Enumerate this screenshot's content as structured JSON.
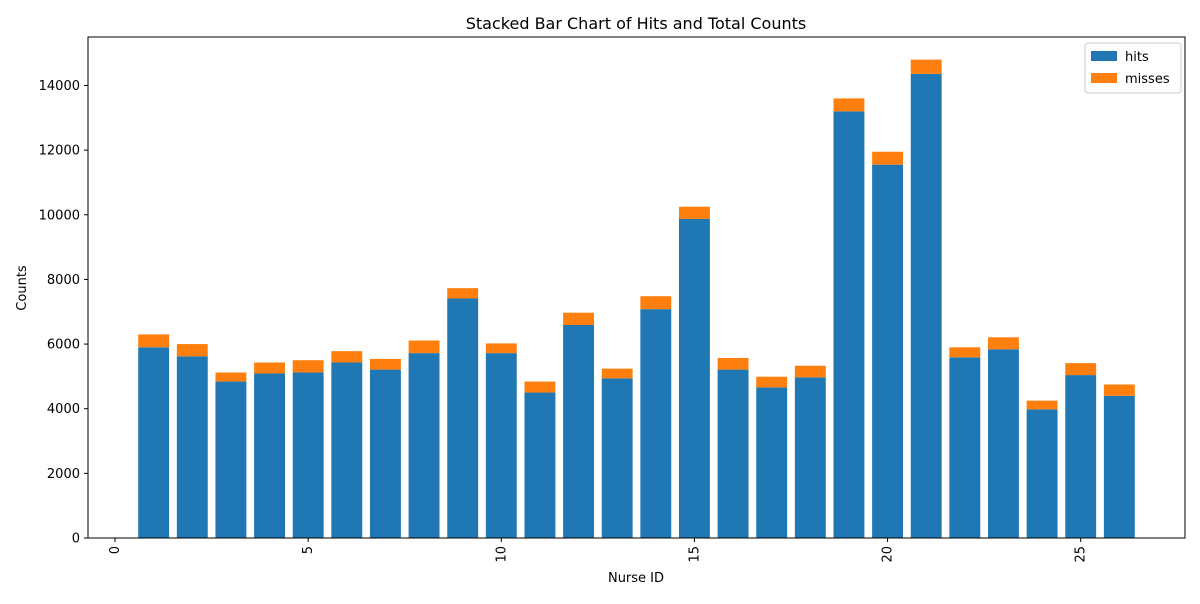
{
  "chart_data": {
    "type": "bar",
    "stacked": true,
    "title": "Stacked Bar Chart of Hits and Total Counts",
    "xlabel": "Nurse ID",
    "ylabel": "Counts",
    "xlim": [
      -0.7,
      27.7
    ],
    "ylim": [
      0,
      15500
    ],
    "x_ticks": [
      0,
      5,
      10,
      15,
      20,
      25
    ],
    "x_tick_labels": [
      "0",
      "5",
      "10",
      "15",
      "20",
      "25"
    ],
    "y_ticks": [
      0,
      2000,
      4000,
      6000,
      8000,
      10000,
      12000,
      14000
    ],
    "y_tick_labels": [
      "0",
      "2000",
      "4000",
      "6000",
      "8000",
      "10000",
      "12000",
      "14000"
    ],
    "grid": false,
    "legend_position": "top-right",
    "x": [
      1,
      2,
      3,
      4,
      5,
      6,
      7,
      8,
      9,
      10,
      11,
      12,
      13,
      14,
      15,
      16,
      17,
      18,
      19,
      20,
      21,
      22,
      23,
      24,
      25,
      26
    ],
    "series": [
      {
        "name": "hits",
        "color": "#1f77b4",
        "values": [
          5900,
          5620,
          4840,
          5090,
          5120,
          5430,
          5210,
          5720,
          7410,
          5720,
          4500,
          6590,
          4940,
          7080,
          9870,
          5210,
          4660,
          4970,
          13200,
          11550,
          14360,
          5590,
          5840,
          3980,
          5040,
          4400
        ]
      },
      {
        "name": "misses",
        "color": "#ff7f0e",
        "values": [
          400,
          380,
          280,
          340,
          380,
          350,
          330,
          390,
          320,
          300,
          340,
          380,
          300,
          400,
          380,
          360,
          330,
          360,
          400,
          400,
          440,
          310,
          370,
          270,
          370,
          350
        ]
      }
    ]
  }
}
